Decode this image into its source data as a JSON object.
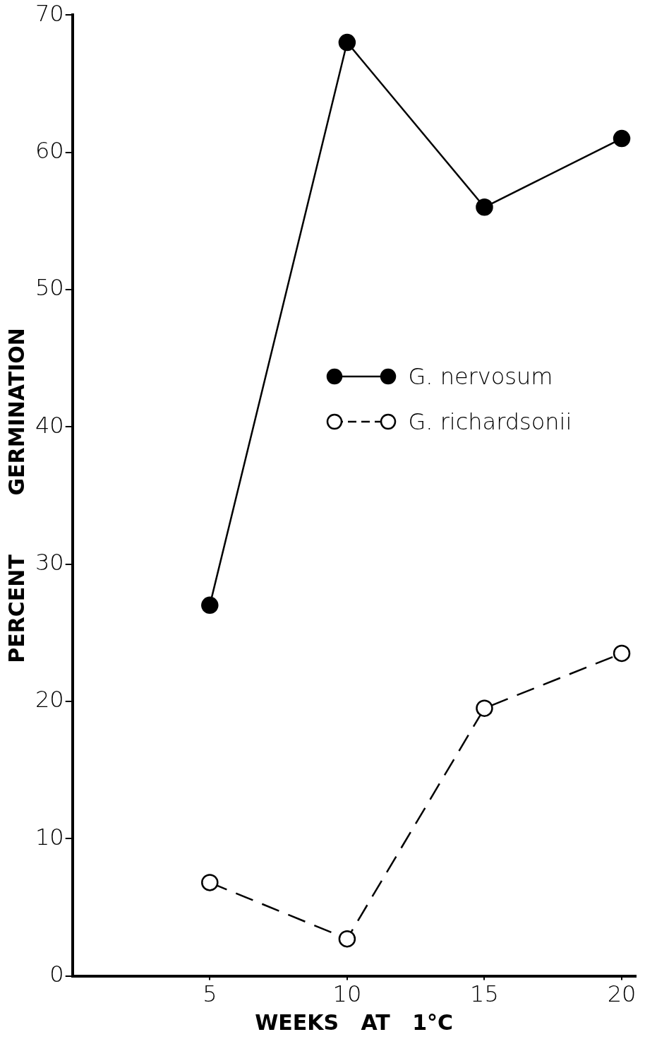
{
  "chart_data": {
    "type": "line",
    "xlabel": "WEEKS   AT   1°C",
    "ylabel": "PERCENT        GERMINATION",
    "x": [
      5,
      10,
      15,
      20
    ],
    "series": [
      {
        "name": "G. nervosum",
        "color": "#000000",
        "values": [
          27,
          68,
          56,
          61
        ],
        "line_style": "solid"
      },
      {
        "name": "G. richardsonii",
        "color": "#000000",
        "values": [
          6.8,
          2.7,
          19.5,
          23.5
        ],
        "line_style": "dashed"
      }
    ],
    "xlim": [
      0,
      20.5
    ],
    "xticks": [
      5,
      10,
      15,
      20
    ],
    "ylim": [
      0,
      70
    ],
    "yticks": [
      0,
      10,
      20,
      30,
      40,
      50,
      60,
      70
    ],
    "grid": false,
    "legend": "right",
    "marker": "circle"
  }
}
